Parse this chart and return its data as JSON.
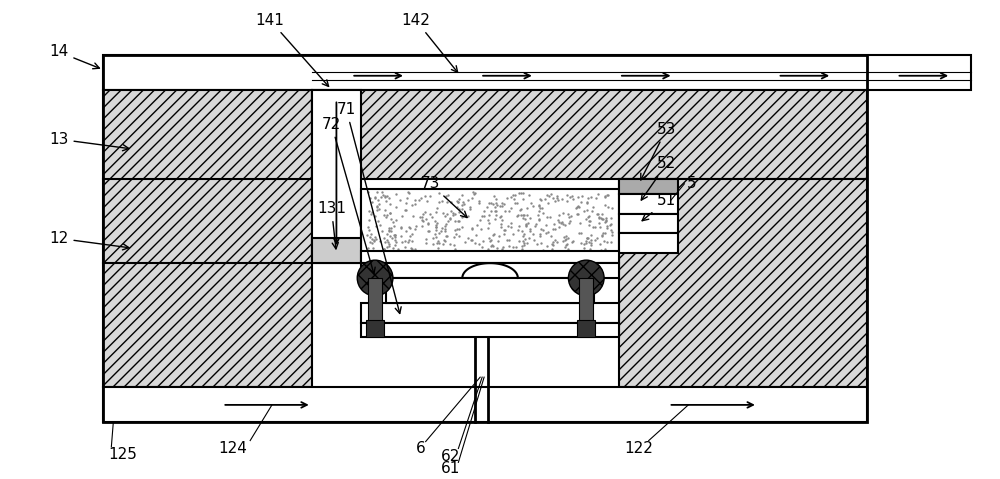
{
  "bg_color": "#ffffff",
  "fig_width": 10.0,
  "fig_height": 4.79,
  "hatch_fc": "#d8d8d8",
  "hatch_pattern": "///",
  "lw_main": 1.5,
  "lw_thin": 1.0,
  "fs_label": 11
}
